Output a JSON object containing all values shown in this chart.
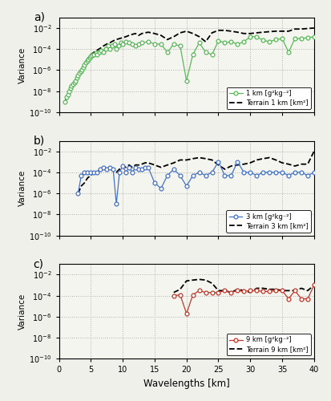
{
  "panel_a": {
    "label": "a)",
    "sim_label": "1 km [g²kg⁻²]",
    "terrain_label": "Terrain 1 km [km²]",
    "color": "#5ab85a",
    "sim_x": [
      1.0,
      1.2,
      1.4,
      1.6,
      1.8,
      2.0,
      2.2,
      2.4,
      2.6,
      2.8,
      3.0,
      3.2,
      3.4,
      3.6,
      3.8,
      4.0,
      4.2,
      4.4,
      4.6,
      4.8,
      5.0,
      5.2,
      5.5,
      5.8,
      6.0,
      6.3,
      6.6,
      7.0,
      7.3,
      7.7,
      8.0,
      8.3,
      8.7,
      9.0,
      9.3,
      9.7,
      10.0,
      10.5,
      11.0,
      11.5,
      12.0,
      12.5,
      13.0,
      14.0,
      15.0,
      16.0,
      17.0,
      18.0,
      19.0,
      20.0,
      21.0,
      22.0,
      23.0,
      24.0,
      25.0,
      26.0,
      27.0,
      28.0,
      29.0,
      30.0,
      31.0,
      32.0,
      33.0,
      34.0,
      35.0,
      36.0,
      37.0,
      38.0,
      39.0,
      40.0
    ],
    "sim_y": [
      1e-09,
      3e-09,
      5e-09,
      1e-08,
      2e-08,
      3e-08,
      5e-08,
      7e-08,
      1e-07,
      2e-07,
      3e-07,
      5e-07,
      7e-07,
      1e-06,
      2e-06,
      3e-06,
      5e-06,
      7e-06,
      1e-05,
      1.5e-05,
      2e-05,
      2.5e-05,
      3e-05,
      4e-05,
      3e-05,
      5e-05,
      7e-05,
      5e-05,
      0.0001,
      0.0002,
      0.0001,
      0.0002,
      0.0003,
      0.0001,
      0.0002,
      0.0004,
      0.0003,
      0.0005,
      0.0004,
      0.0003,
      0.0002,
      0.0003,
      0.0004,
      0.0005,
      0.0003,
      0.0003,
      5e-05,
      0.0003,
      0.0002,
      1e-07,
      3e-05,
      0.0004,
      5e-05,
      3e-05,
      0.0006,
      0.0004,
      0.0005,
      0.0003,
      0.0005,
      0.0015,
      0.0015,
      0.0007,
      0.0005,
      0.0008,
      0.001,
      5e-05,
      0.001,
      0.001,
      0.0012,
      0.0015
    ],
    "terrain_x": [
      1.0,
      1.2,
      1.4,
      1.6,
      1.8,
      2.0,
      2.2,
      2.4,
      2.6,
      2.8,
      3.0,
      3.2,
      3.4,
      3.6,
      3.8,
      4.0,
      4.2,
      4.4,
      4.6,
      4.8,
      5.0,
      5.5,
      6.0,
      6.5,
      7.0,
      7.5,
      8.0,
      8.5,
      9.0,
      9.5,
      10.0,
      10.5,
      11.0,
      11.5,
      12.0,
      12.5,
      13.0,
      14.0,
      15.0,
      16.0,
      17.0,
      18.0,
      19.0,
      20.0,
      21.0,
      22.0,
      23.0,
      24.0,
      25.0,
      26.0,
      27.0,
      28.0,
      29.0,
      30.0,
      31.0,
      32.0,
      33.0,
      34.0,
      35.0,
      36.0,
      37.0,
      38.0,
      39.0,
      40.0
    ],
    "terrain_y": [
      1e-09,
      3e-09,
      5e-09,
      8e-09,
      1e-08,
      2e-08,
      4e-08,
      6e-08,
      1e-07,
      2e-07,
      3e-07,
      5e-07,
      8e-07,
      1e-06,
      2e-06,
      4e-06,
      6e-06,
      1e-05,
      1.5e-05,
      2e-05,
      3e-05,
      5e-05,
      8e-05,
      0.00012,
      0.0002,
      0.0003,
      0.0004,
      0.0006,
      0.0008,
      0.001,
      0.0012,
      0.0015,
      0.002,
      0.0025,
      0.003,
      0.002,
      0.003,
      0.004,
      0.003,
      0.002,
      0.0008,
      0.0015,
      0.0035,
      0.005,
      0.003,
      0.0015,
      0.0005,
      0.0035,
      0.006,
      0.006,
      0.005,
      0.004,
      0.003,
      0.003,
      0.0035,
      0.004,
      0.0045,
      0.005,
      0.005,
      0.005,
      0.008,
      0.008,
      0.009,
      0.01
    ]
  },
  "panel_b": {
    "label": "b)",
    "sim_label": "3 km [g²kg⁻²]",
    "terrain_label": "Terrain 3 km [km²]",
    "color": "#4472c4",
    "sim_x": [
      3.0,
      3.5,
      4.0,
      4.5,
      5.0,
      5.5,
      6.0,
      6.5,
      7.0,
      7.5,
      8.0,
      8.5,
      9.0,
      9.5,
      10.0,
      10.5,
      11.0,
      11.5,
      12.0,
      12.5,
      13.0,
      13.5,
      14.0,
      15.0,
      16.0,
      17.0,
      18.0,
      19.0,
      20.0,
      21.0,
      22.0,
      23.0,
      24.0,
      25.0,
      26.0,
      27.0,
      28.0,
      29.0,
      30.0,
      31.0,
      32.0,
      33.0,
      34.0,
      35.0,
      36.0,
      37.0,
      38.0,
      39.0,
      40.0
    ],
    "sim_y": [
      1e-06,
      5e-05,
      0.0001,
      0.0001,
      0.0001,
      0.0001,
      0.0001,
      0.0002,
      0.0003,
      0.0002,
      0.0003,
      0.0002,
      1e-07,
      0.0001,
      0.0004,
      0.0001,
      0.0003,
      0.0001,
      0.0003,
      0.0002,
      0.0002,
      0.0003,
      0.0003,
      1e-05,
      3e-06,
      5e-05,
      0.0002,
      5e-05,
      5e-06,
      5e-05,
      0.0001,
      5e-05,
      0.0001,
      0.001,
      5e-05,
      5e-05,
      0.001,
      0.0001,
      0.0001,
      5e-05,
      0.0001,
      0.0001,
      0.0001,
      0.0001,
      5e-05,
      0.0001,
      0.0001,
      5e-05,
      0.0001
    ],
    "terrain_x": [
      3.0,
      3.5,
      4.0,
      4.5,
      5.0,
      5.5,
      6.0,
      6.5,
      7.0,
      7.5,
      8.0,
      8.5,
      9.0,
      9.5,
      10.0,
      10.5,
      11.0,
      11.5,
      12.0,
      12.5,
      13.0,
      13.5,
      14.0,
      15.0,
      16.0,
      17.0,
      18.0,
      19.0,
      20.0,
      21.0,
      22.0,
      23.0,
      24.0,
      25.0,
      26.0,
      27.0,
      28.0,
      29.0,
      30.0,
      31.0,
      32.0,
      33.0,
      34.0,
      35.0,
      36.0,
      37.0,
      38.0,
      39.0,
      40.0
    ],
    "terrain_y": [
      1e-06,
      5e-06,
      1e-05,
      3e-05,
      5e-05,
      0.0001,
      0.0001,
      0.0002,
      0.0003,
      0.0002,
      0.0003,
      0.0002,
      0.0001,
      0.0002,
      0.0004,
      0.0003,
      0.0005,
      0.0003,
      0.0005,
      0.0005,
      0.0006,
      0.0008,
      0.0008,
      0.0005,
      0.0003,
      0.0005,
      0.0008,
      0.0015,
      0.0015,
      0.002,
      0.0025,
      0.002,
      0.0015,
      0.0005,
      0.0002,
      0.0004,
      0.0005,
      0.0006,
      0.0008,
      0.0015,
      0.002,
      0.0025,
      0.0015,
      0.0008,
      0.0006,
      0.0004,
      0.0006,
      0.0006,
      0.01
    ]
  },
  "panel_c": {
    "label": "c)",
    "sim_label": "9 km [g²kg⁻²]",
    "terrain_label": "Terrain 9 km [km²]",
    "color": "#c0392b",
    "sim_x": [
      18.0,
      19.0,
      20.0,
      21.0,
      22.0,
      23.0,
      24.0,
      25.0,
      26.0,
      27.0,
      28.0,
      29.0,
      30.0,
      31.0,
      32.0,
      33.0,
      34.0,
      35.0,
      36.0,
      37.0,
      38.0,
      39.0,
      40.0
    ],
    "sim_y": [
      0.0001,
      0.00012,
      2e-06,
      0.00012,
      0.0003,
      0.0002,
      0.0002,
      0.0002,
      0.0003,
      0.0002,
      0.0003,
      0.00025,
      0.0003,
      0.0003,
      0.00025,
      0.00025,
      0.0003,
      0.0003,
      5e-05,
      0.0003,
      5e-05,
      5e-05,
      0.001
    ],
    "terrain_x": [
      18.0,
      19.0,
      20.0,
      21.0,
      22.0,
      23.0,
      24.0,
      25.0,
      26.0,
      27.0,
      28.0,
      29.0,
      30.0,
      31.0,
      32.0,
      33.0,
      34.0,
      35.0,
      36.0,
      37.0,
      38.0,
      39.0,
      40.0
    ],
    "terrain_y": [
      0.0002,
      0.0004,
      0.0025,
      0.003,
      0.0035,
      0.003,
      0.0015,
      0.0003,
      0.0003,
      0.0002,
      0.0004,
      0.0003,
      0.0002,
      0.0005,
      0.0005,
      0.0004,
      0.0004,
      0.0003,
      0.0003,
      0.0003,
      0.0005,
      0.0003,
      0.001
    ]
  },
  "xlim": [
    0,
    40
  ],
  "ylim_log": [
    -10,
    -1
  ],
  "xlabel": "Wavelengths [km]",
  "ylabel": "Variance",
  "xticks": [
    0,
    5,
    10,
    15,
    20,
    25,
    30,
    35,
    40
  ],
  "background": "#f5f5f0",
  "grid_color": "#b0b0b0"
}
